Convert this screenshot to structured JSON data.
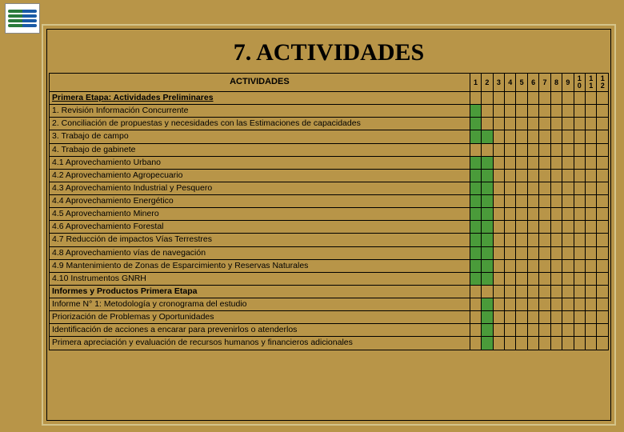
{
  "title": "7. ACTIVIDADES",
  "header_label": "ACTIVIDADES",
  "columns": [
    "1",
    "2",
    "3",
    "4",
    "5",
    "6",
    "7",
    "8",
    "9",
    "1\n0",
    "1\n1",
    "1\n2"
  ],
  "rows": [
    {
      "label": "Primera Etapa:  Actividades Preliminares",
      "bold": true,
      "underline": true,
      "fill": []
    },
    {
      "label": "1. Revisión Información Concurrente",
      "fill": [
        1
      ]
    },
    {
      "label": "2. Conciliación de propuestas y necesidades con las Estimaciones de capacidades",
      "fill": [
        1
      ]
    },
    {
      "label": "3. Trabajo de campo",
      "fill": [
        1,
        2
      ]
    },
    {
      "label": "4. Trabajo de gabinete",
      "fill": []
    },
    {
      "label": "4.1 Aprovechamiento Urbano",
      "fill": [
        1,
        2
      ]
    },
    {
      "label": "4.2 Aprovechamiento Agropecuario",
      "fill": [
        1,
        2
      ]
    },
    {
      "label": "4.3 Aprovechamiento Industrial y Pesquero",
      "fill": [
        1,
        2
      ]
    },
    {
      "label": "4.4 Aprovechamiento Energético",
      "fill": [
        1,
        2
      ]
    },
    {
      "label": "4.5 Aprovechamiento Minero",
      "fill": [
        1,
        2
      ]
    },
    {
      "label": "4.6 Aprovechamiento Forestal",
      "fill": [
        1,
        2
      ]
    },
    {
      "label": "4.7 Reducción de impactos Vías Terrestres",
      "fill": [
        1,
        2
      ]
    },
    {
      "label": "4.8 Aprovechamiento vías de navegación",
      "fill": [
        1,
        2
      ]
    },
    {
      "label": "4.9 Mantenimiento de Zonas de Esparcimiento y Reservas Naturales",
      "fill": [
        1,
        2
      ]
    },
    {
      "label": "4.10 Instrumentos GNRH",
      "fill": [
        1,
        2
      ]
    },
    {
      "label": "Informes y Productos Primera Etapa",
      "bold": true,
      "fill": []
    },
    {
      "label": "Informe N° 1: Metodología y cronograma del estudio",
      "fill": [
        2
      ]
    },
    {
      "label": "Priorización de Problemas y Oportunidades",
      "fill": [
        2
      ]
    },
    {
      "label": "Identificación de acciones a encarar para prevenirlos o atenderlos",
      "fill": [
        2
      ]
    },
    {
      "label": "Primera apreciación y evaluación de recursos humanos y financieros adicionales",
      "fill": [
        2
      ]
    }
  ],
  "colors": {
    "page_bg": "#b89548",
    "frame_border": "#d4c48a",
    "fill": "#4a9b3a"
  }
}
